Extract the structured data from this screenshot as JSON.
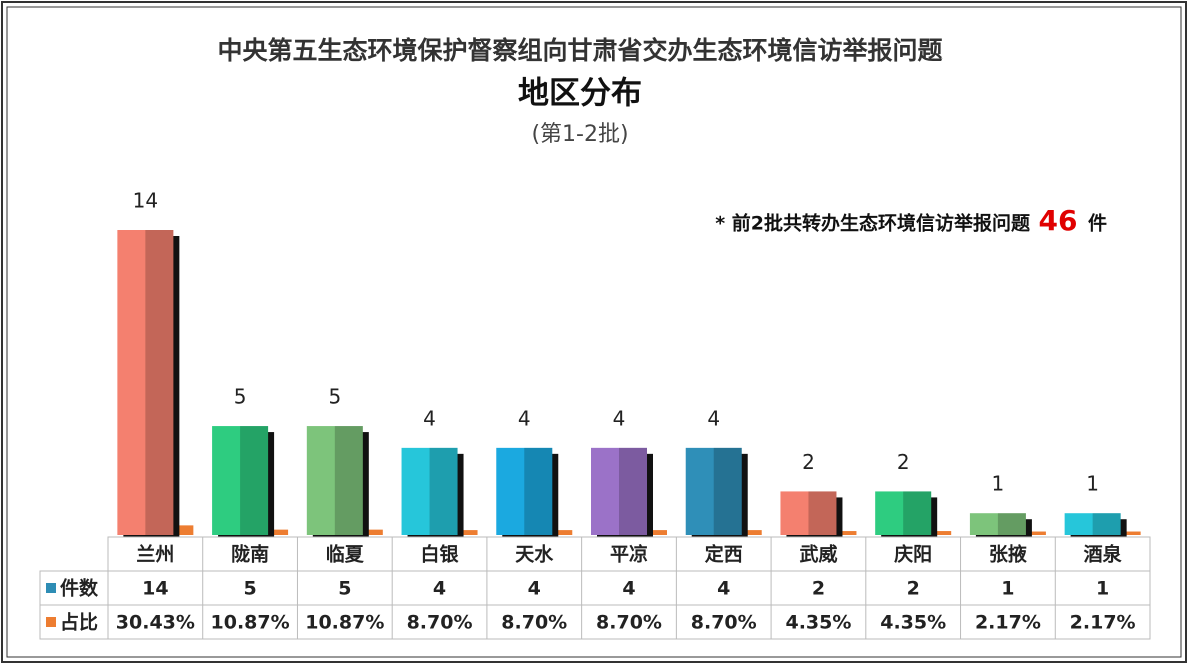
{
  "chart_data": {
    "type": "bar",
    "title": "中央第五生态环境保护督察组向甘肃省交办生态环境信访举报问题",
    "subtitle": "地区分布",
    "note": "(第1-2批)",
    "annotation": {
      "prefix": "* 前2批共转办生态环境信访举报问题",
      "value": 46,
      "suffix": "件"
    },
    "categories": [
      "兰州",
      "陇南",
      "临夏",
      "白银",
      "天水",
      "平凉",
      "定西",
      "武威",
      "庆阳",
      "张掖",
      "酒泉"
    ],
    "ylim": [
      0,
      14
    ],
    "series": [
      {
        "name": "件数",
        "color": "#2e8db5",
        "colors": [
          "#f4806f",
          "#2ecc80",
          "#7dc47b",
          "#26c6da",
          "#1ba9e0",
          "#9b72c8",
          "#2f8fb8",
          "#f4806f",
          "#2ecc80",
          "#7dc47b",
          "#26c6da"
        ],
        "values": [
          14,
          5,
          5,
          4,
          4,
          4,
          4,
          2,
          2,
          1,
          1
        ]
      },
      {
        "name": "占比",
        "color": "#ed7d31",
        "values": [
          0.3043,
          0.1087,
          0.1087,
          0.087,
          0.087,
          0.087,
          0.087,
          0.0435,
          0.0435,
          0.0217,
          0.0217
        ],
        "value_labels": [
          "30.43%",
          "10.87%",
          "10.87%",
          "8.70%",
          "8.70%",
          "8.70%",
          "8.70%",
          "4.35%",
          "4.35%",
          "2.17%",
          "2.17%"
        ]
      }
    ]
  }
}
